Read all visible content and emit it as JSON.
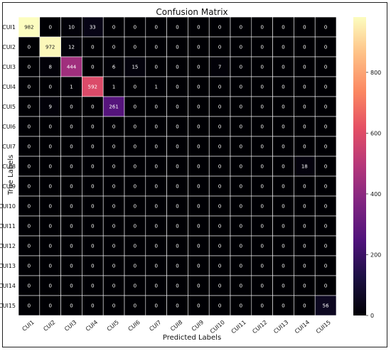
{
  "chart_data": {
    "type": "heatmap",
    "title": "Confusion Matrix",
    "xlabel": "Predicted Labels",
    "ylabel": "True Labels",
    "x_categories": [
      "CUI1",
      "CUI2",
      "CUI3",
      "CUI4",
      "CUI5",
      "CUI6",
      "CUI7",
      "CUI8",
      "CUI9",
      "CUI10",
      "CUI11",
      "CUI12",
      "CUI13",
      "CUI14",
      "CUI15"
    ],
    "y_categories": [
      "CUI1",
      "CUI2",
      "CUI3",
      "CUI4",
      "CUI5",
      "CUI6",
      "CUI7",
      "CUI8",
      "CUI9",
      "CUI10",
      "CUI11",
      "CUI12",
      "CUI13",
      "CUI14",
      "CUI15"
    ],
    "values": [
      [
        982,
        0,
        10,
        33,
        0,
        0,
        0,
        0,
        0,
        0,
        0,
        0,
        0,
        0,
        0
      ],
      [
        0,
        972,
        12,
        0,
        0,
        0,
        0,
        0,
        0,
        0,
        0,
        0,
        0,
        0,
        0
      ],
      [
        0,
        8,
        444,
        0,
        6,
        15,
        0,
        0,
        0,
        7,
        0,
        0,
        0,
        0,
        0
      ],
      [
        0,
        0,
        1,
        592,
        1,
        0,
        1,
        0,
        0,
        0,
        0,
        0,
        0,
        0,
        0
      ],
      [
        0,
        9,
        0,
        0,
        261,
        0,
        0,
        0,
        0,
        0,
        0,
        0,
        0,
        0,
        0
      ],
      [
        0,
        0,
        0,
        0,
        0,
        0,
        0,
        0,
        0,
        0,
        0,
        0,
        0,
        0,
        0
      ],
      [
        0,
        0,
        0,
        0,
        0,
        0,
        0,
        0,
        0,
        0,
        0,
        0,
        0,
        0,
        0
      ],
      [
        0,
        0,
        0,
        0,
        0,
        0,
        0,
        0,
        0,
        0,
        0,
        0,
        0,
        18,
        0
      ],
      [
        0,
        0,
        0,
        0,
        0,
        0,
        0,
        0,
        0,
        0,
        0,
        0,
        0,
        0,
        0
      ],
      [
        0,
        0,
        0,
        0,
        0,
        0,
        0,
        0,
        0,
        0,
        0,
        0,
        0,
        0,
        0
      ],
      [
        0,
        0,
        0,
        0,
        0,
        0,
        0,
        0,
        0,
        0,
        0,
        0,
        0,
        0,
        0
      ],
      [
        0,
        0,
        0,
        0,
        0,
        0,
        0,
        0,
        0,
        0,
        0,
        0,
        0,
        0,
        0
      ],
      [
        0,
        0,
        0,
        0,
        0,
        0,
        0,
        0,
        0,
        0,
        0,
        0,
        0,
        0,
        0
      ],
      [
        0,
        0,
        0,
        0,
        0,
        0,
        0,
        0,
        0,
        0,
        0,
        0,
        0,
        0,
        0
      ],
      [
        0,
        0,
        0,
        0,
        0,
        0,
        0,
        0,
        0,
        0,
        0,
        0,
        0,
        0,
        56
      ]
    ],
    "colormap": "magma",
    "colorbar_range": [
      0,
      982
    ],
    "colorbar_ticks": [
      0,
      200,
      400,
      600,
      800
    ],
    "grid": true,
    "grid_color": "#ffffff"
  }
}
